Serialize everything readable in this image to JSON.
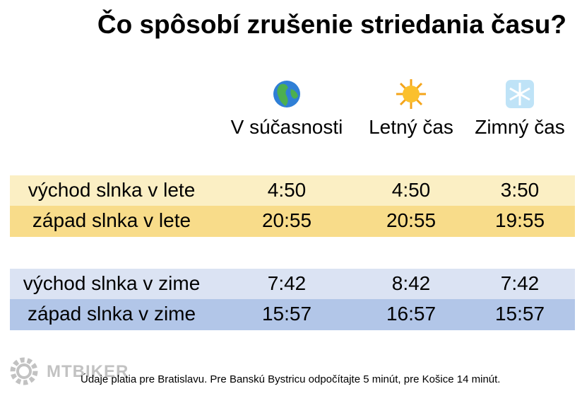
{
  "title": "Čo spôsobí zrušenie striedania času?",
  "columns": [
    "V súčasnosti",
    "Letný čas",
    "Zimný čas"
  ],
  "groups": [
    {
      "rows": [
        {
          "label": "východ slnka v lete",
          "values": [
            "4:50",
            "4:50",
            "3:50"
          ]
        },
        {
          "label": "západ slnka v lete",
          "values": [
            "20:55",
            "20:55",
            "19:55"
          ]
        }
      ]
    },
    {
      "rows": [
        {
          "label": "východ slnka v zime",
          "values": [
            "7:42",
            "8:42",
            "7:42"
          ]
        },
        {
          "label": "západ slnka v zime",
          "values": [
            "15:57",
            "16:57",
            "15:57"
          ]
        }
      ]
    }
  ],
  "footnote": "Údaje platia pre Bratislavu. Pre Banskú Bystricu odpočítajte 5 minút, pre Košice 14 minút.",
  "watermark": "MTBIKER"
}
